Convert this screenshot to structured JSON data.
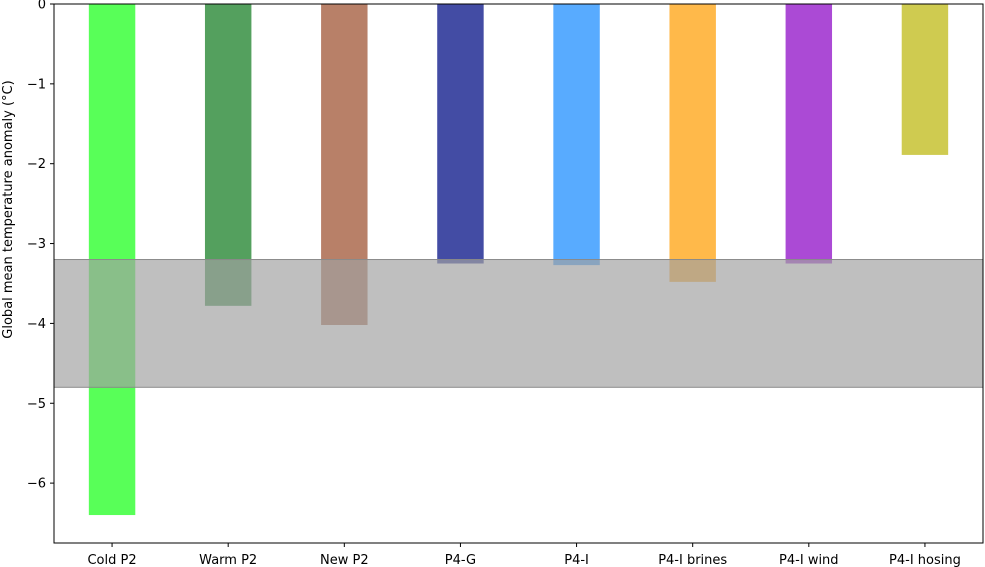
{
  "chart_data": {
    "type": "bar",
    "categories": [
      "Cold P2",
      "Warm P2",
      "New P2",
      "P4-G",
      "P4-I",
      "P4-I brines",
      "P4-I wind",
      "P4-I hosing"
    ],
    "values": [
      -6.4,
      -3.78,
      -4.02,
      -3.25,
      -3.27,
      -3.48,
      -3.25,
      -1.89
    ],
    "colors": [
      "#33ff33",
      "#2e8b3a",
      "#a86447",
      "#1a2490",
      "#3399ff",
      "#ffaa22",
      "#9922cc",
      "#c4c02a"
    ],
    "ylabel": "Global mean temperature anomaly (°C)",
    "xlabel": "",
    "ylim": [
      -6.75,
      0
    ],
    "yticks": [
      0,
      -1,
      -2,
      -3,
      -4,
      -5,
      -6
    ],
    "ytick_labels": [
      "0",
      "−1",
      "−2",
      "−3",
      "−4",
      "−5",
      "−6"
    ],
    "band": {
      "y_from": -3.2,
      "y_to": -4.8,
      "color": "#a0a0a0"
    },
    "grid": false,
    "legend": "none"
  }
}
